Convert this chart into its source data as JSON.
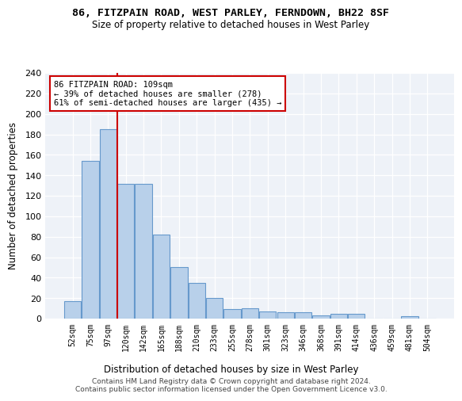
{
  "title1": "86, FITZPAIN ROAD, WEST PARLEY, FERNDOWN, BH22 8SF",
  "title2": "Size of property relative to detached houses in West Parley",
  "xlabel": "Distribution of detached houses by size in West Parley",
  "ylabel": "Number of detached properties",
  "bin_labels": [
    "52sqm",
    "75sqm",
    "97sqm",
    "120sqm",
    "142sqm",
    "165sqm",
    "188sqm",
    "210sqm",
    "233sqm",
    "255sqm",
    "278sqm",
    "301sqm",
    "323sqm",
    "346sqm",
    "368sqm",
    "391sqm",
    "414sqm",
    "436sqm",
    "459sqm",
    "481sqm",
    "504sqm"
  ],
  "bar_values": [
    17,
    154,
    185,
    132,
    132,
    82,
    50,
    35,
    20,
    9,
    10,
    7,
    6,
    6,
    3,
    5,
    5,
    0,
    0,
    2,
    0
  ],
  "bar_color": "#b8d0ea",
  "bar_edge_color": "#6699cc",
  "vline_color": "#cc0000",
  "annotation_text": "86 FITZPAIN ROAD: 109sqm\n← 39% of detached houses are smaller (278)\n61% of semi-detached houses are larger (435) →",
  "annotation_box_color": "#ffffff",
  "annotation_box_edge": "#cc0000",
  "ylim": [
    0,
    240
  ],
  "yticks": [
    0,
    20,
    40,
    60,
    80,
    100,
    120,
    140,
    160,
    180,
    200,
    220,
    240
  ],
  "background_color": "#eef2f8",
  "footer1": "Contains HM Land Registry data © Crown copyright and database right 2024.",
  "footer2": "Contains public sector information licensed under the Open Government Licence v3.0."
}
